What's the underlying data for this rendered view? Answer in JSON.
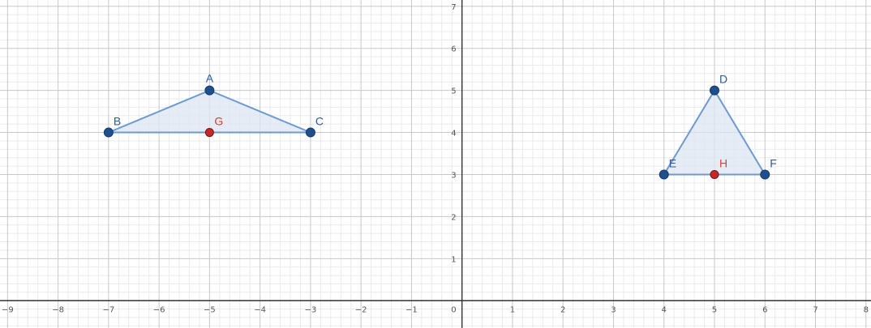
{
  "x_ticks": [
    "−9",
    "−8",
    "−7",
    "−6",
    "−5",
    "−4",
    "−3",
    "−2",
    "−1",
    "0",
    "1",
    "2",
    "3",
    "4",
    "5",
    "6",
    "7",
    "8"
  ],
  "y_ticks": [
    "1",
    "2",
    "3",
    "4",
    "5",
    "6",
    "7"
  ],
  "x_range": [
    -9.15,
    8.1
  ],
  "y_range": [
    -0.65,
    7.15
  ],
  "grid": true,
  "colors": {
    "background": "#ffffff",
    "grid_major": "#c8c8c8",
    "grid_minor": "#ebebeb",
    "axis": "#333333",
    "polygon_stroke": "#6d9ad0",
    "polygon_fill": "#dce6f3",
    "vertex_point": "#1f4f8f",
    "midpoint": "#c62828",
    "vertex_label": "#2d5aa0",
    "midpoint_label": "#e53935"
  },
  "triangles": [
    {
      "name": "ABC",
      "vertices": [
        {
          "label": "A",
          "x": -5,
          "y": 5,
          "label_pos": "above"
        },
        {
          "label": "B",
          "x": -7,
          "y": 4,
          "label_pos": "upper-right"
        },
        {
          "label": "C",
          "x": -3,
          "y": 4,
          "label_pos": "upper-right"
        }
      ]
    },
    {
      "name": "DEF",
      "vertices": [
        {
          "label": "D",
          "x": 5,
          "y": 5,
          "label_pos": "upper-right"
        },
        {
          "label": "E",
          "x": 4,
          "y": 3,
          "label_pos": "upper-right"
        },
        {
          "label": "F",
          "x": 6,
          "y": 3,
          "label_pos": "upper-right"
        }
      ]
    }
  ],
  "midpoints": [
    {
      "label": "G",
      "x": -5,
      "y": 4,
      "label_pos": "upper-right"
    },
    {
      "label": "H",
      "x": 5,
      "y": 3,
      "label_pos": "upper-right"
    }
  ]
}
